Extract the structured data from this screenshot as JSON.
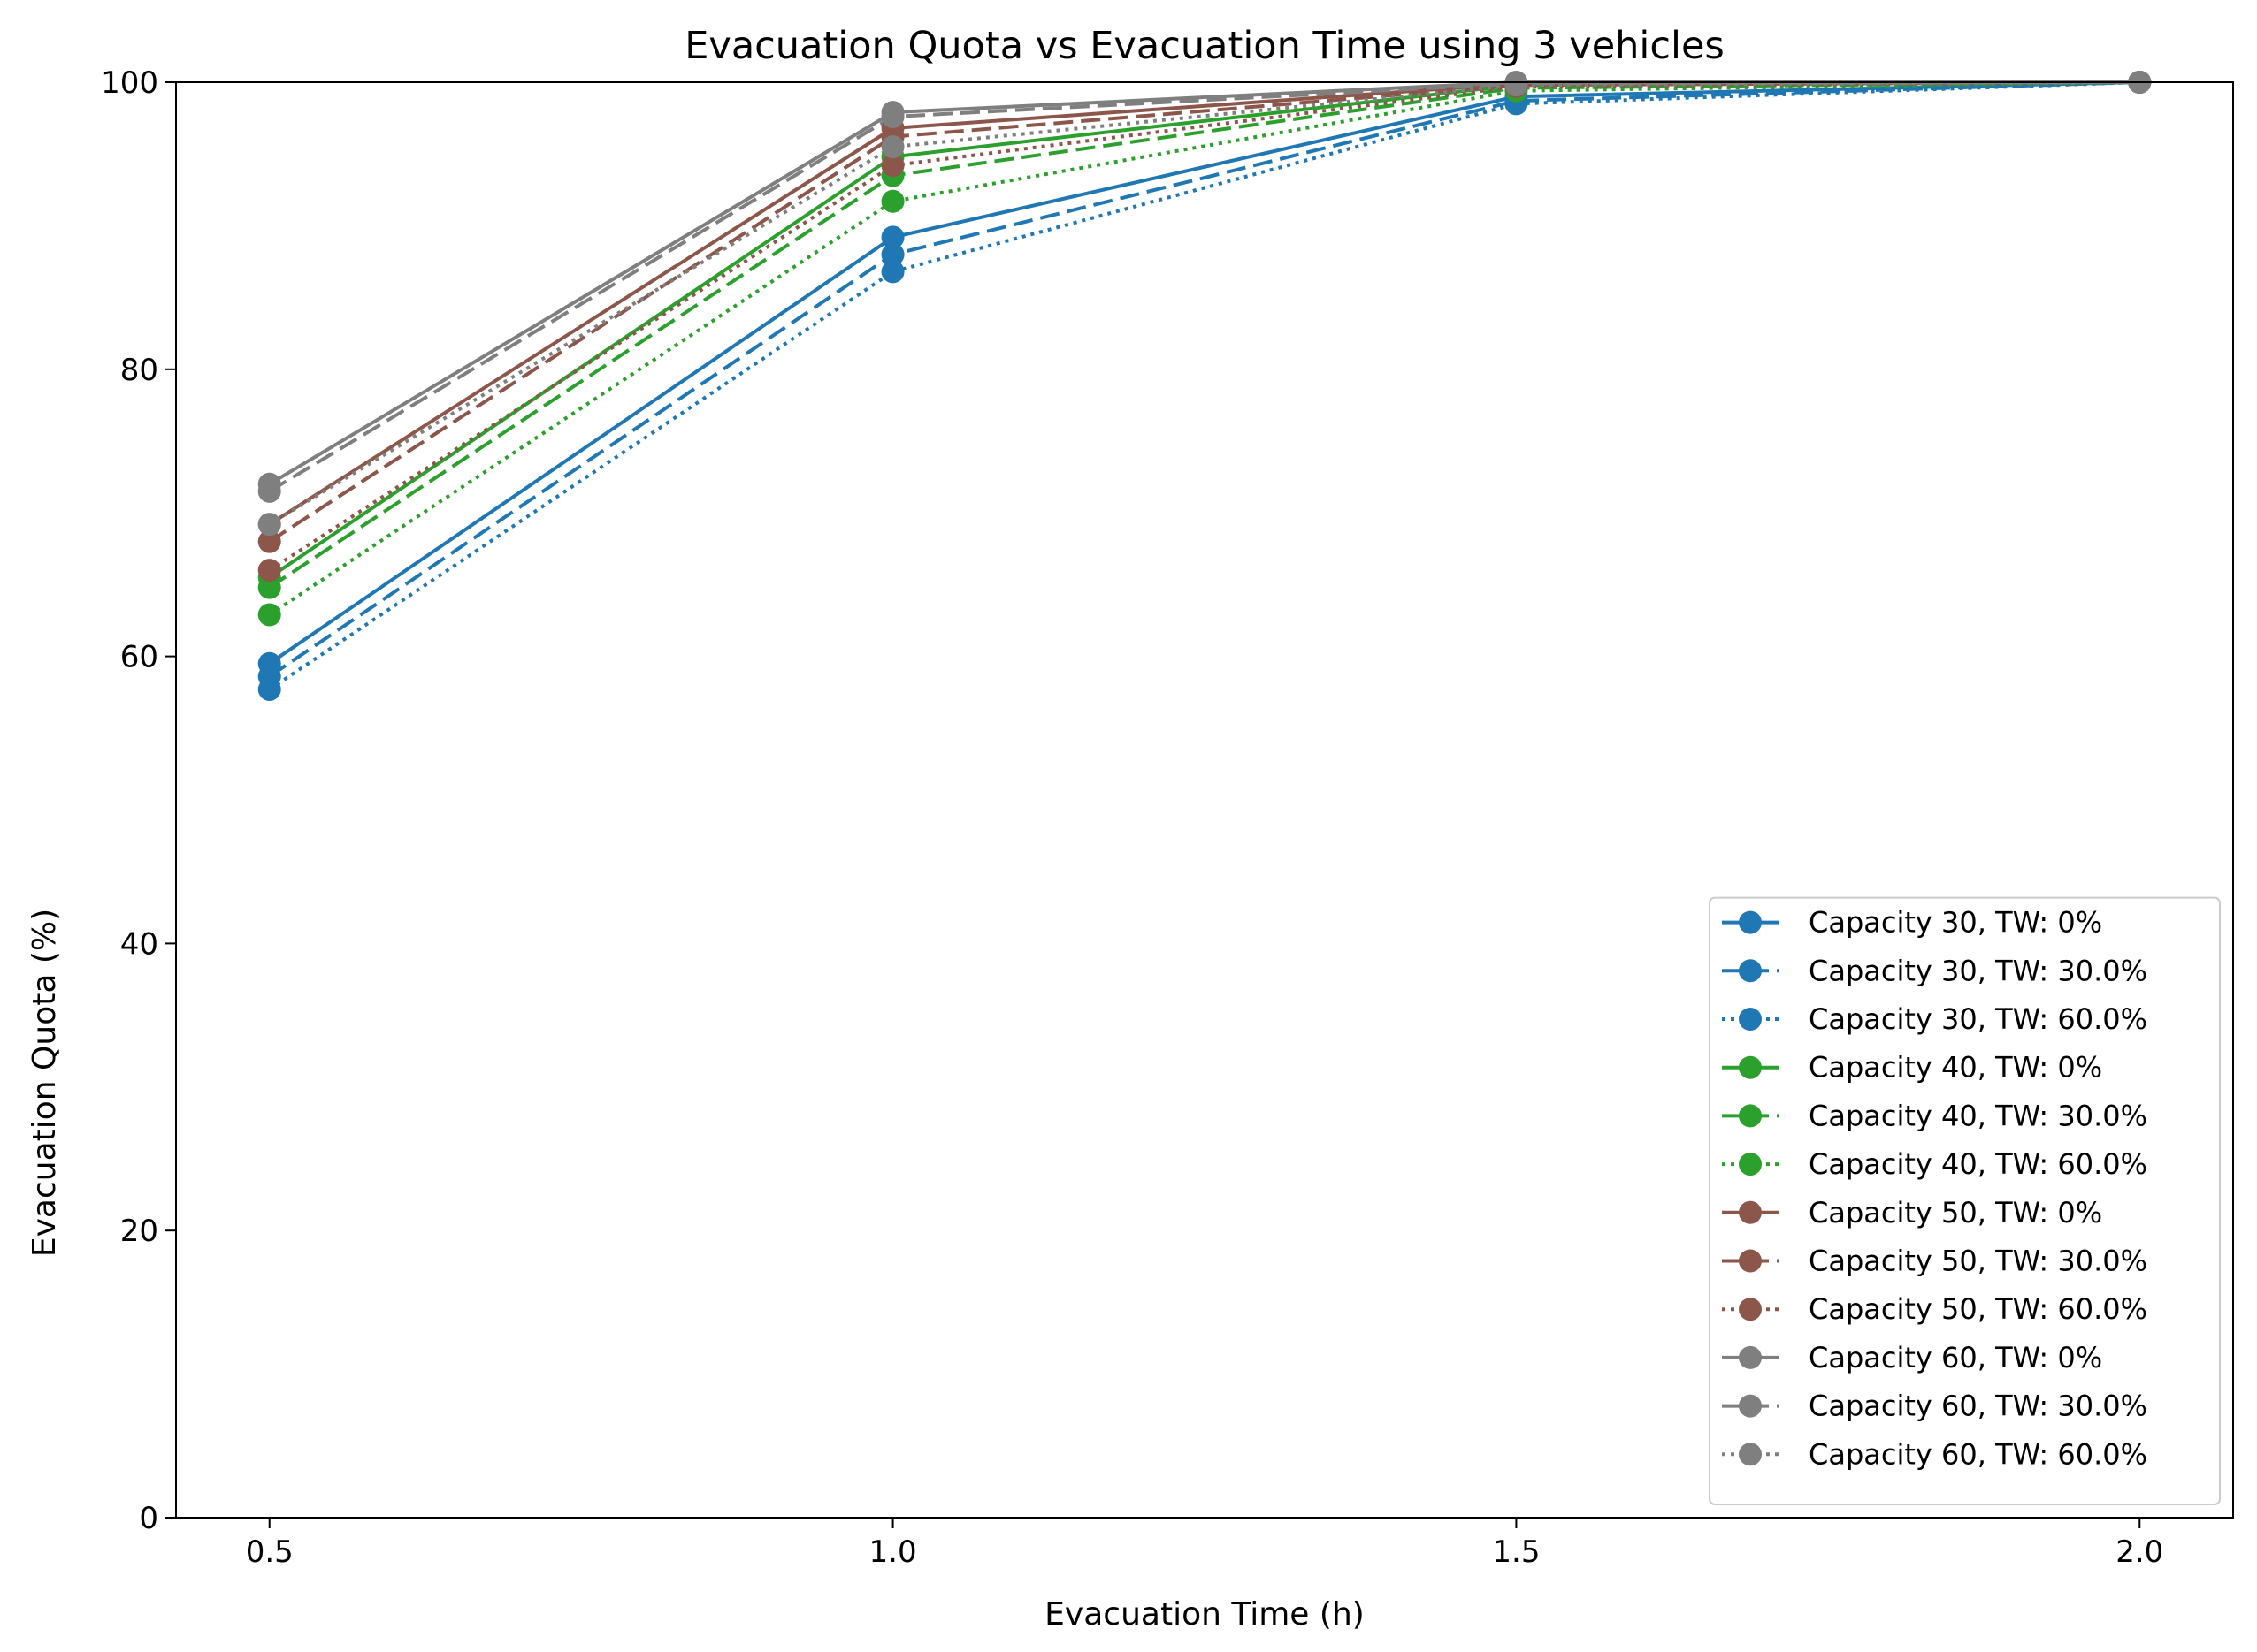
{
  "chart_data": {
    "type": "line",
    "title": "Evacuation Quota vs Evacuation Time using 3 vehicles",
    "xlabel": "Evacuation Time (h)",
    "ylabel": "Evacuation Quota (%)",
    "x": [
      0.5,
      1.0,
      1.5,
      2.0
    ],
    "x_ticks": [
      "0.5",
      "1.0",
      "1.5",
      "2.0"
    ],
    "xlim": [
      0.425,
      2.075
    ],
    "ylim": [
      0,
      100
    ],
    "y_ticks": [
      "0",
      "20",
      "40",
      "60",
      "80",
      "100"
    ],
    "grid": false,
    "legend_position": "lower-right",
    "series": [
      {
        "name": "Capacity 30, TW: 0%",
        "color": "#1f77b4",
        "style": "solid",
        "values": [
          59.5,
          89.2,
          99.0,
          100
        ]
      },
      {
        "name": "Capacity 30, TW: 30.0%",
        "color": "#1f77b4",
        "style": "dashed",
        "values": [
          58.6,
          88.0,
          98.7,
          100
        ]
      },
      {
        "name": "Capacity 30, TW: 60.0%",
        "color": "#1f77b4",
        "style": "dotted",
        "values": [
          57.7,
          86.8,
          98.5,
          100
        ]
      },
      {
        "name": "Capacity 40, TW: 0%",
        "color": "#2ca02c",
        "style": "solid",
        "values": [
          65.5,
          94.8,
          99.8,
          100
        ]
      },
      {
        "name": "Capacity 40, TW: 30.0%",
        "color": "#2ca02c",
        "style": "dashed",
        "values": [
          64.8,
          93.5,
          99.6,
          100
        ]
      },
      {
        "name": "Capacity 40, TW: 60.0%",
        "color": "#2ca02c",
        "style": "dotted",
        "values": [
          62.9,
          91.7,
          99.4,
          100
        ]
      },
      {
        "name": "Capacity 50, TW: 0%",
        "color": "#8c564b",
        "style": "solid",
        "values": [
          69.2,
          96.8,
          99.9,
          100
        ]
      },
      {
        "name": "Capacity 50, TW: 30.0%",
        "color": "#8c564b",
        "style": "dashed",
        "values": [
          68.0,
          96.2,
          99.8,
          100
        ]
      },
      {
        "name": "Capacity 50, TW: 60.0%",
        "color": "#8c564b",
        "style": "dotted",
        "values": [
          66.0,
          94.2,
          99.7,
          100
        ]
      },
      {
        "name": "Capacity 60, TW: 0%",
        "color": "#7f7f7f",
        "style": "solid",
        "values": [
          72.0,
          97.9,
          100,
          100
        ]
      },
      {
        "name": "Capacity 60, TW: 30.0%",
        "color": "#7f7f7f",
        "style": "dashed",
        "values": [
          71.5,
          97.6,
          99.9,
          100
        ]
      },
      {
        "name": "Capacity 60, TW: 60.0%",
        "color": "#7f7f7f",
        "style": "dotted",
        "values": [
          69.2,
          95.5,
          99.8,
          100
        ]
      }
    ]
  }
}
